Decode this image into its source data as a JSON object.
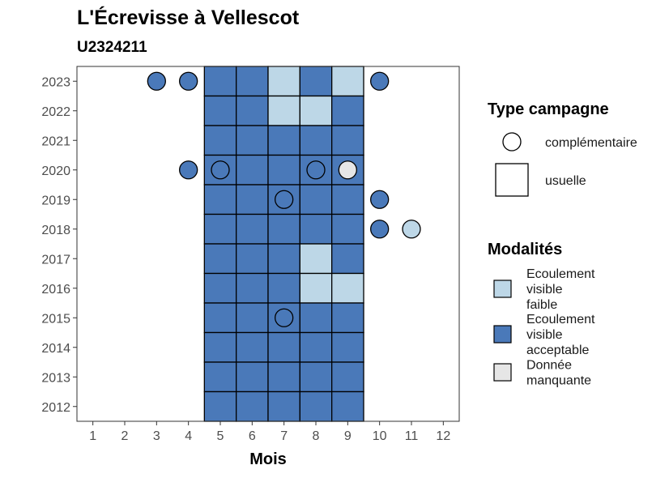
{
  "chart_data": {
    "type": "heatmap",
    "title": "L'Écrevisse à Vellescot",
    "subtitle": "U2324211",
    "xlabel": "Mois",
    "ylabel": "",
    "x_ticks": [
      1,
      2,
      3,
      4,
      5,
      6,
      7,
      8,
      9,
      10,
      11,
      12
    ],
    "y_ticks": [
      2012,
      2013,
      2014,
      2015,
      2016,
      2017,
      2018,
      2019,
      2020,
      2021,
      2022,
      2023
    ],
    "xlim": [
      0.5,
      12.5
    ],
    "ylim": [
      2011.5,
      2023.5
    ],
    "grid": false,
    "colors": {
      "faible": "#bdd7e7",
      "acceptable": "#4a79b9",
      "manquante": "#e6e6e6"
    },
    "legend_type": {
      "title": "Type campagne",
      "entries": [
        {
          "shape": "circle",
          "label": "complémentaire"
        },
        {
          "shape": "square",
          "label": "usuelle"
        }
      ]
    },
    "legend_modalite": {
      "title": "Modalités",
      "entries": [
        {
          "key": "faible",
          "lines": [
            "Ecoulement",
            "visible",
            "faible"
          ]
        },
        {
          "key": "acceptable",
          "lines": [
            "Ecoulement",
            "visible",
            "acceptable"
          ]
        },
        {
          "key": "manquante",
          "lines": [
            "Donnée",
            "manquante"
          ]
        }
      ]
    },
    "usuelle": [
      {
        "year": 2023,
        "months": {
          "5": "acceptable",
          "6": "acceptable",
          "7": "faible",
          "8": "acceptable",
          "9": "faible"
        }
      },
      {
        "year": 2022,
        "months": {
          "5": "acceptable",
          "6": "acceptable",
          "7": "faible",
          "8": "faible",
          "9": "acceptable"
        }
      },
      {
        "year": 2021,
        "months": {
          "5": "acceptable",
          "6": "acceptable",
          "7": "acceptable",
          "8": "acceptable",
          "9": "acceptable"
        }
      },
      {
        "year": 2020,
        "months": {
          "5": "acceptable",
          "6": "acceptable",
          "7": "acceptable",
          "8": "acceptable",
          "9": "acceptable"
        }
      },
      {
        "year": 2019,
        "months": {
          "5": "acceptable",
          "6": "acceptable",
          "7": "acceptable",
          "8": "acceptable",
          "9": "acceptable"
        }
      },
      {
        "year": 2018,
        "months": {
          "5": "acceptable",
          "6": "acceptable",
          "7": "acceptable",
          "8": "acceptable",
          "9": "acceptable"
        }
      },
      {
        "year": 2017,
        "months": {
          "5": "acceptable",
          "6": "acceptable",
          "7": "acceptable",
          "8": "faible",
          "9": "acceptable"
        }
      },
      {
        "year": 2016,
        "months": {
          "5": "acceptable",
          "6": "acceptable",
          "7": "acceptable",
          "8": "faible",
          "9": "faible"
        }
      },
      {
        "year": 2015,
        "months": {
          "5": "acceptable",
          "6": "acceptable",
          "7": "acceptable",
          "8": "acceptable",
          "9": "acceptable"
        }
      },
      {
        "year": 2014,
        "months": {
          "5": "acceptable",
          "6": "acceptable",
          "7": "acceptable",
          "8": "acceptable",
          "9": "acceptable"
        }
      },
      {
        "year": 2013,
        "months": {
          "5": "acceptable",
          "6": "acceptable",
          "7": "acceptable",
          "8": "acceptable",
          "9": "acceptable"
        }
      },
      {
        "year": 2012,
        "months": {
          "5": "acceptable",
          "6": "acceptable",
          "7": "acceptable",
          "8": "acceptable",
          "9": "acceptable"
        }
      }
    ],
    "complementaire": [
      {
        "year": 2023,
        "month": 3,
        "modalite": "acceptable"
      },
      {
        "year": 2023,
        "month": 4,
        "modalite": "acceptable"
      },
      {
        "year": 2023,
        "month": 10,
        "modalite": "acceptable"
      },
      {
        "year": 2020,
        "month": 4,
        "modalite": "acceptable"
      },
      {
        "year": 2020,
        "month": 5,
        "modalite": "acceptable"
      },
      {
        "year": 2020,
        "month": 8,
        "modalite": "acceptable"
      },
      {
        "year": 2020,
        "month": 9,
        "modalite": "manquante"
      },
      {
        "year": 2019,
        "month": 7,
        "modalite": "acceptable"
      },
      {
        "year": 2019,
        "month": 10,
        "modalite": "acceptable"
      },
      {
        "year": 2018,
        "month": 10,
        "modalite": "acceptable"
      },
      {
        "year": 2018,
        "month": 11,
        "modalite": "faible"
      },
      {
        "year": 2015,
        "month": 7,
        "modalite": "acceptable"
      }
    ]
  }
}
